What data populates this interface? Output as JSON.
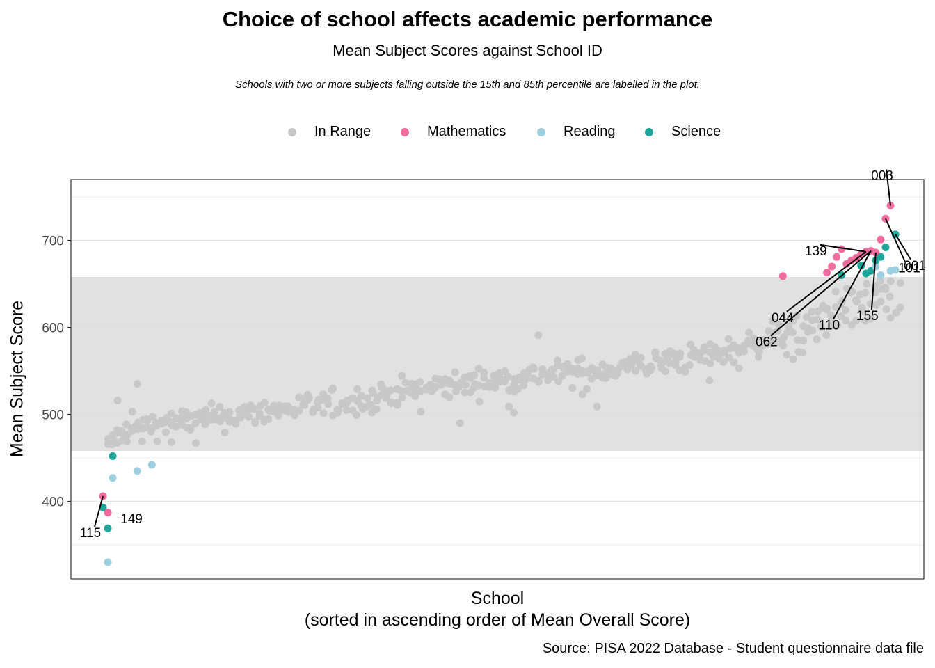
{
  "title": "Choice of school affects academic performance",
  "subtitle": "Mean Subject Scores against School ID",
  "note": "Schools with two or more subjects falling outside the 15th and 85th percentile are labelled in the plot.",
  "caption": "Source: PISA 2022 Database - Student questionnaire data file",
  "legend": [
    {
      "label": "In Range",
      "color": "#c8c8c8"
    },
    {
      "label": "Mathematics",
      "color": "#f06b9e"
    },
    {
      "label": "Reading",
      "color": "#9ecfe0"
    },
    {
      "label": "Science",
      "color": "#1fa59a"
    }
  ],
  "chart_data": {
    "type": "scatter",
    "title": "Choice of school affects academic performance",
    "subtitle": "Mean Subject Scores against School ID",
    "xlabel": "School",
    "xlabel_note": "(sorted in ascending order of Mean Overall Score)",
    "ylabel": "Mean Subject Score",
    "ylim": [
      320,
      765
    ],
    "yticks": [
      400,
      500,
      600,
      700
    ],
    "x_count": 165,
    "grid": true,
    "legend_position": "top",
    "percentile_band": [
      458,
      658
    ],
    "band_color": "#dedede",
    "in_range_trend": [
      [
        2,
        465
      ],
      [
        5,
        478
      ],
      [
        10,
        488
      ],
      [
        20,
        493
      ],
      [
        30,
        500
      ],
      [
        40,
        507
      ],
      [
        50,
        513
      ],
      [
        60,
        524
      ],
      [
        70,
        532
      ],
      [
        80,
        538
      ],
      [
        90,
        545
      ],
      [
        100,
        549
      ],
      [
        110,
        556
      ],
      [
        120,
        563
      ],
      [
        130,
        574
      ],
      [
        140,
        593
      ],
      [
        150,
        620
      ],
      [
        158,
        640
      ],
      [
        164,
        648
      ]
    ],
    "in_range_outliers": [
      [
        3,
        473
      ],
      [
        4,
        516
      ],
      [
        5,
        470
      ],
      [
        7,
        503
      ],
      [
        8,
        535
      ],
      [
        9,
        469
      ],
      [
        15,
        468
      ],
      [
        20,
        467
      ],
      [
        56,
        502
      ],
      [
        66,
        503
      ],
      [
        74,
        490
      ],
      [
        84,
        509
      ],
      [
        85,
        502
      ],
      [
        90,
        591
      ],
      [
        99,
        523
      ],
      [
        102,
        509
      ],
      [
        125,
        539
      ],
      [
        131,
        553
      ]
    ],
    "highlighted": [
      {
        "x": 1,
        "y": 406,
        "subject": "Mathematics"
      },
      {
        "x": 1,
        "y": 393,
        "subject": "Science"
      },
      {
        "x": 2,
        "y": 387,
        "subject": "Mathematics"
      },
      {
        "x": 2,
        "y": 369,
        "subject": "Science"
      },
      {
        "x": 2,
        "y": 330,
        "subject": "Reading"
      },
      {
        "x": 3,
        "y": 427,
        "subject": "Reading"
      },
      {
        "x": 3,
        "y": 452,
        "subject": "Science"
      },
      {
        "x": 8,
        "y": 435,
        "subject": "Reading"
      },
      {
        "x": 11,
        "y": 442,
        "subject": "Reading"
      },
      {
        "x": 140,
        "y": 659,
        "subject": "Mathematics"
      },
      {
        "x": 149,
        "y": 663,
        "subject": "Mathematics"
      },
      {
        "x": 150,
        "y": 670,
        "subject": "Mathematics"
      },
      {
        "x": 151,
        "y": 681,
        "subject": "Mathematics"
      },
      {
        "x": 152,
        "y": 690,
        "subject": "Mathematics"
      },
      {
        "x": 152,
        "y": 660,
        "subject": "Science"
      },
      {
        "x": 153,
        "y": 673,
        "subject": "Mathematics"
      },
      {
        "x": 154,
        "y": 677,
        "subject": "Mathematics"
      },
      {
        "x": 155,
        "y": 680,
        "subject": "Mathematics"
      },
      {
        "x": 156,
        "y": 684,
        "subject": "Mathematics"
      },
      {
        "x": 156,
        "y": 671,
        "subject": "Science"
      },
      {
        "x": 157,
        "y": 687,
        "subject": "Mathematics"
      },
      {
        "x": 157,
        "y": 662,
        "subject": "Science"
      },
      {
        "x": 158,
        "y": 688,
        "subject": "Mathematics"
      },
      {
        "x": 158,
        "y": 665,
        "subject": "Science"
      },
      {
        "x": 159,
        "y": 686,
        "subject": "Mathematics"
      },
      {
        "x": 159,
        "y": 670,
        "subject": "Reading"
      },
      {
        "x": 159,
        "y": 677,
        "subject": "Science"
      },
      {
        "x": 160,
        "y": 701,
        "subject": "Mathematics"
      },
      {
        "x": 160,
        "y": 660,
        "subject": "Reading"
      },
      {
        "x": 160,
        "y": 681,
        "subject": "Science"
      },
      {
        "x": 161,
        "y": 725,
        "subject": "Mathematics"
      },
      {
        "x": 161,
        "y": 692,
        "subject": "Science"
      },
      {
        "x": 162,
        "y": 740,
        "subject": "Mathematics"
      },
      {
        "x": 162,
        "y": 665,
        "subject": "Reading"
      },
      {
        "x": 163,
        "y": 707,
        "subject": "Science"
      },
      {
        "x": 163,
        "y": 666,
        "subject": "Reading"
      }
    ],
    "labels": [
      {
        "text": "115",
        "x": 1,
        "y": 406
      },
      {
        "text": "149",
        "x": 2,
        "y": 387
      },
      {
        "text": "003",
        "x": 162,
        "y": 740
      },
      {
        "text": "001",
        "x": 163,
        "y": 707
      },
      {
        "text": "101",
        "x": 161,
        "y": 725
      },
      {
        "text": "139",
        "x": 157,
        "y": 687
      },
      {
        "text": "155",
        "x": 159,
        "y": 686
      },
      {
        "text": "110",
        "x": 158,
        "y": 688
      },
      {
        "text": "044",
        "x": 157,
        "y": 687
      },
      {
        "text": "062",
        "x": 158,
        "y": 688
      }
    ]
  }
}
